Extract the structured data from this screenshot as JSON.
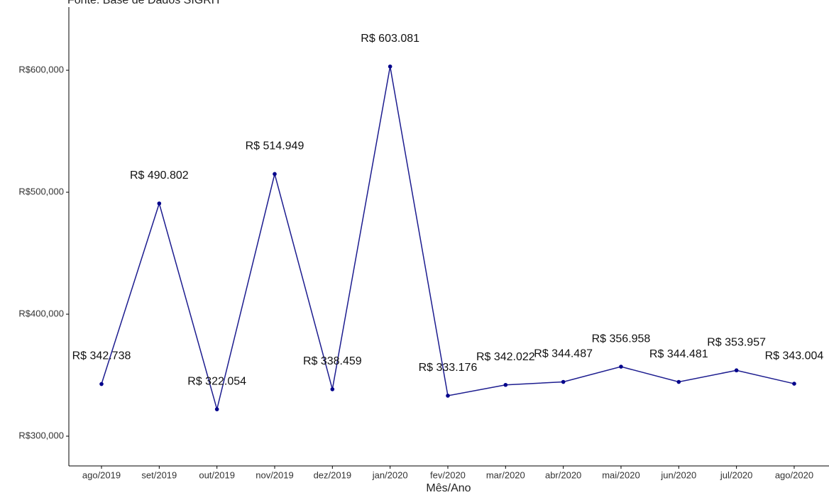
{
  "chart_data": {
    "type": "line",
    "subtitle": "Fonte: Base de Dados SIGRH",
    "x_label": "Mês/Ano",
    "categories": [
      "ago/2019",
      "set/2019",
      "out/2019",
      "nov/2019",
      "dez/2019",
      "jan/2020",
      "fev/2020",
      "mar/2020",
      "abr/2020",
      "mai/2020",
      "jun/2020",
      "jul/2020",
      "ago/2020"
    ],
    "series": [
      {
        "color": "#1c1c8f",
        "values": [
          342738,
          490802,
          322054,
          514949,
          338459,
          603081,
          333176,
          342022,
          344487,
          356958,
          344481,
          353957,
          343004
        ],
        "value_labels": [
          "R$ 342.738",
          "R$ 490.802",
          "R$ 322.054",
          "R$ 514.949",
          "R$ 338.459",
          "R$ 603.081",
          "R$ 333.176",
          "R$ 342.022",
          "R$ 344.487",
          "R$ 356.958",
          "R$ 344.481",
          "R$ 353.957",
          "R$ 343.004"
        ]
      }
    ],
    "ylim": [
      275600,
      657600
    ],
    "yticks": [
      {
        "value": 300000,
        "label": "R$300,000"
      },
      {
        "value": 400000,
        "label": "R$400,000"
      },
      {
        "value": 500000,
        "label": "R$500,000"
      },
      {
        "value": 600000,
        "label": "R$600,000"
      }
    ],
    "grid": false
  }
}
